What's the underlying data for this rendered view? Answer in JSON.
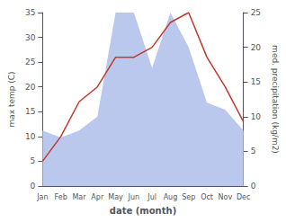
{
  "chart_data": {
    "type": "line",
    "categories": [
      "Jan",
      "Feb",
      "Mar",
      "Apr",
      "May",
      "Jun",
      "Jul",
      "Aug",
      "Sep",
      "Oct",
      "Nov",
      "Dec"
    ],
    "series": [
      {
        "type": "area",
        "color": "#bbc8ee",
        "values": [
          8,
          7,
          8,
          10,
          25,
          25,
          17,
          25,
          20,
          12,
          11,
          8
        ],
        "axis": "y2"
      },
      {
        "type": "line",
        "color": "#c0392b",
        "values": [
          5,
          10,
          17,
          20,
          26,
          26,
          28,
          33,
          35,
          26,
          20,
          13
        ]
      }
    ],
    "xlabel": "date (month)",
    "ylabel": "max temp (C)",
    "y2label": "med. precipitation (kg/m2)",
    "ylim": [
      0,
      35
    ],
    "yticks": [
      0,
      5,
      10,
      15,
      20,
      25,
      30,
      35
    ],
    "y2lim": [
      0,
      25
    ],
    "y2ticks": [
      0,
      5,
      10,
      15,
      20,
      25
    ],
    "grid": false
  }
}
